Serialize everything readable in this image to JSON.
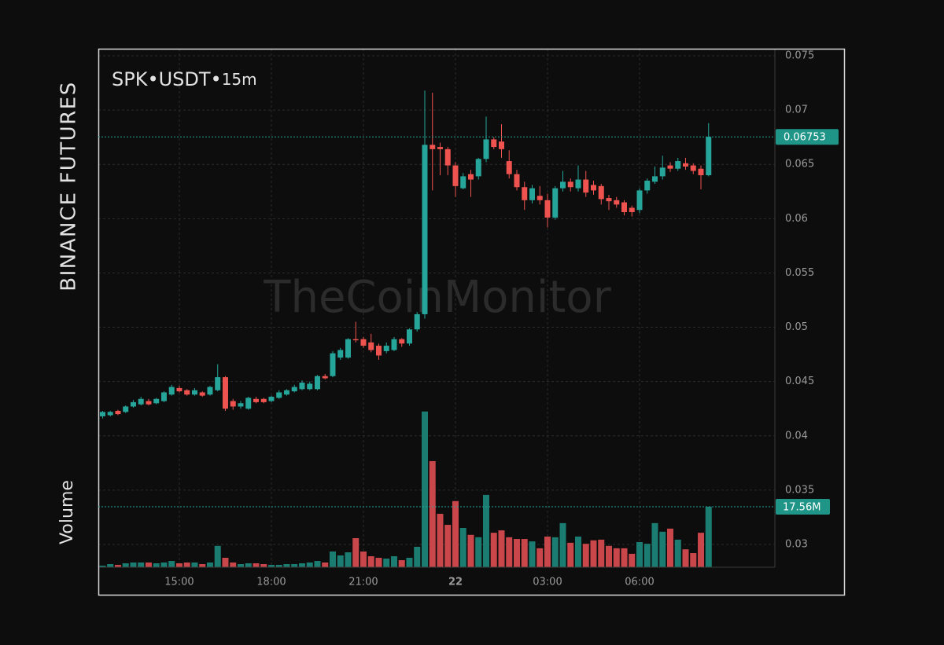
{
  "chart_data": {
    "type": "candlestick",
    "exchange": "BINANCE FUTURES",
    "symbol": "SPK•USDT•",
    "interval": "15m",
    "watermark": "TheCoinMonitor",
    "volume_label": "Volume",
    "x": [
      12.5,
      12.75,
      13,
      13.25,
      13.5,
      13.75,
      14,
      14.25,
      14.5,
      14.75,
      15,
      15.25,
      15.5,
      15.75,
      16,
      16.25,
      16.5,
      16.75,
      17,
      17.25,
      17.5,
      17.75,
      18,
      18.25,
      18.5,
      18.75,
      19,
      19.25,
      19.5,
      19.75,
      20,
      20.25,
      20.5,
      20.75,
      21,
      21.25,
      21.5,
      21.75,
      22,
      22.25,
      22.5,
      22.75,
      23,
      23.25,
      23.5,
      23.75,
      24,
      24.25,
      24.5,
      24.75,
      25,
      25.25,
      25.5,
      25.75,
      26,
      26.25,
      26.5,
      26.75,
      27,
      27.25,
      27.5,
      27.75,
      28,
      28.25,
      28.5,
      28.75,
      29,
      29.25,
      29.5,
      29.75,
      30,
      30.25,
      30.5,
      30.75,
      31,
      31.25,
      31.5,
      31.75,
      32,
      32.25
    ],
    "open": [
      0.0418,
      0.0419,
      0.0423,
      0.0422,
      0.0427,
      0.0429,
      0.0432,
      0.043,
      0.0432,
      0.0438,
      0.0444,
      0.0442,
      0.0438,
      0.044,
      0.0438,
      0.0442,
      0.0454,
      0.0432,
      0.0427,
      0.0425,
      0.0434,
      0.0434,
      0.0432,
      0.0435,
      0.0438,
      0.0441,
      0.0443,
      0.0443,
      0.0443,
      0.0455,
      0.0455,
      0.0472,
      0.0472,
      0.0489,
      0.0489,
      0.0486,
      0.0483,
      0.0478,
      0.0479,
      0.0489,
      0.0485,
      0.0498,
      0.0512,
      0.0668,
      0.0666,
      0.0664,
      0.0649,
      0.0628,
      0.0641,
      0.0639,
      0.0655,
      0.0673,
      0.0671,
      0.0653,
      0.0641,
      0.0629,
      0.0617,
      0.0621,
      0.0617,
      0.0601,
      0.0628,
      0.0634,
      0.0628,
      0.0636,
      0.0631,
      0.063,
      0.0619,
      0.0617,
      0.0615,
      0.061,
      0.0608,
      0.0626,
      0.0634,
      0.0639,
      0.0649,
      0.0646,
      0.0651,
      0.0649,
      0.0646,
      0.064
    ],
    "high": [
      0.0423,
      0.0423,
      0.0424,
      0.0428,
      0.0433,
      0.0436,
      0.0434,
      0.0435,
      0.0441,
      0.0447,
      0.0446,
      0.0443,
      0.0444,
      0.0441,
      0.0446,
      0.0466,
      0.0455,
      0.0434,
      0.0432,
      0.0436,
      0.0436,
      0.0435,
      0.0437,
      0.0442,
      0.0443,
      0.0447,
      0.0451,
      0.045,
      0.0456,
      0.0457,
      0.0478,
      0.0481,
      0.049,
      0.0505,
      0.0491,
      0.0494,
      0.0485,
      0.0486,
      0.0491,
      0.049,
      0.0499,
      0.0514,
      0.0718,
      0.0716,
      0.067,
      0.0666,
      0.0652,
      0.0642,
      0.0645,
      0.0656,
      0.0694,
      0.0675,
      0.0687,
      0.0663,
      0.0645,
      0.0634,
      0.0631,
      0.063,
      0.0623,
      0.063,
      0.0644,
      0.0637,
      0.0649,
      0.0644,
      0.0635,
      0.0632,
      0.0622,
      0.062,
      0.0617,
      0.0612,
      0.0628,
      0.0637,
      0.0648,
      0.0658,
      0.0652,
      0.0656,
      0.0656,
      0.0651,
      0.0649,
      0.0688
    ],
    "low": [
      0.0416,
      0.0418,
      0.0419,
      0.0421,
      0.0426,
      0.0428,
      0.0428,
      0.0429,
      0.0431,
      0.0437,
      0.044,
      0.0437,
      0.0437,
      0.0436,
      0.0437,
      0.0441,
      0.0423,
      0.0424,
      0.0425,
      0.0424,
      0.043,
      0.043,
      0.0431,
      0.0434,
      0.0437,
      0.044,
      0.0442,
      0.0442,
      0.0442,
      0.0452,
      0.0454,
      0.047,
      0.0471,
      0.0486,
      0.0481,
      0.0477,
      0.047,
      0.0476,
      0.0478,
      0.0482,
      0.0483,
      0.0496,
      0.0508,
      0.0626,
      0.064,
      0.064,
      0.062,
      0.0627,
      0.062,
      0.0636,
      0.0652,
      0.0664,
      0.0656,
      0.0637,
      0.0626,
      0.0608,
      0.0614,
      0.0613,
      0.0592,
      0.0599,
      0.0625,
      0.0625,
      0.0625,
      0.062,
      0.0622,
      0.0613,
      0.0608,
      0.061,
      0.0603,
      0.0602,
      0.0605,
      0.0623,
      0.0632,
      0.0636,
      0.0643,
      0.0644,
      0.0645,
      0.0641,
      0.0627,
      0.0639
    ],
    "close": [
      0.0422,
      0.0422,
      0.042,
      0.0427,
      0.0431,
      0.0434,
      0.0429,
      0.0434,
      0.044,
      0.0445,
      0.0441,
      0.0438,
      0.0442,
      0.0437,
      0.0445,
      0.0454,
      0.0425,
      0.0427,
      0.043,
      0.0435,
      0.0431,
      0.0431,
      0.0436,
      0.044,
      0.0442,
      0.0445,
      0.0449,
      0.0448,
      0.0455,
      0.0453,
      0.0476,
      0.0479,
      0.0489,
      0.0488,
      0.0483,
      0.0479,
      0.0474,
      0.0483,
      0.0489,
      0.0485,
      0.0498,
      0.0512,
      0.0668,
      0.0664,
      0.0664,
      0.0649,
      0.063,
      0.0639,
      0.0636,
      0.0655,
      0.0673,
      0.0666,
      0.0664,
      0.0641,
      0.0629,
      0.0617,
      0.0628,
      0.0617,
      0.0601,
      0.0628,
      0.0634,
      0.0629,
      0.0636,
      0.0624,
      0.0626,
      0.0618,
      0.0616,
      0.0613,
      0.0606,
      0.0606,
      0.0626,
      0.0635,
      0.0639,
      0.0647,
      0.0646,
      0.0653,
      0.0648,
      0.0644,
      0.064,
      0.06753
    ],
    "volume": [
      0.46,
      0.91,
      0.68,
      1.14,
      1.37,
      1.37,
      1.37,
      1.14,
      1.37,
      1.82,
      1.14,
      1.37,
      1.37,
      0.91,
      1.37,
      6.2,
      2.74,
      1.37,
      0.91,
      1.14,
      1.14,
      0.91,
      0.68,
      0.68,
      0.91,
      0.91,
      1.14,
      1.37,
      1.82,
      1.37,
      4.56,
      3.42,
      4.33,
      8.44,
      4.56,
      3.19,
      2.74,
      2.51,
      3.19,
      2.05,
      2.74,
      5.93,
      45.2,
      30.8,
      15.5,
      12.3,
      19.2,
      11.4,
      9.4,
      8.7,
      21.0,
      10.0,
      10.7,
      8.7,
      8.2,
      8.2,
      7.5,
      5.5,
      8.9,
      8.7,
      12.8,
      7.1,
      8.9,
      6.8,
      7.8,
      8.0,
      6.2,
      5.5,
      5.5,
      3.9,
      7.3,
      6.8,
      12.8,
      10.3,
      11.2,
      8.0,
      5.2,
      4.1,
      10.0,
      17.56
    ],
    "volume_last_label": "17.56M",
    "volume_ylim": [
      0,
      150.5
    ],
    "up_color": "#26a69a",
    "down_color": "#ef5350",
    "volume_up_color": "#1b7d72",
    "volume_down_color": "#c9464a",
    "xlim": [
      12.36,
      34.41
    ],
    "xticks": [
      {
        "value": 15,
        "label": "15:00"
      },
      {
        "value": 18,
        "label": "18:00"
      },
      {
        "value": 21,
        "label": "21:00"
      },
      {
        "value": 24,
        "label": "22"
      },
      {
        "value": 27,
        "label": "03:00"
      },
      {
        "value": 30,
        "label": "06:00"
      }
    ],
    "ylim": [
      0.0279,
      0.07565
    ],
    "yticks": [
      0.03,
      0.035,
      0.04,
      0.045,
      0.05,
      0.055,
      0.06,
      0.065,
      0.07,
      0.075
    ],
    "grid": true
  }
}
